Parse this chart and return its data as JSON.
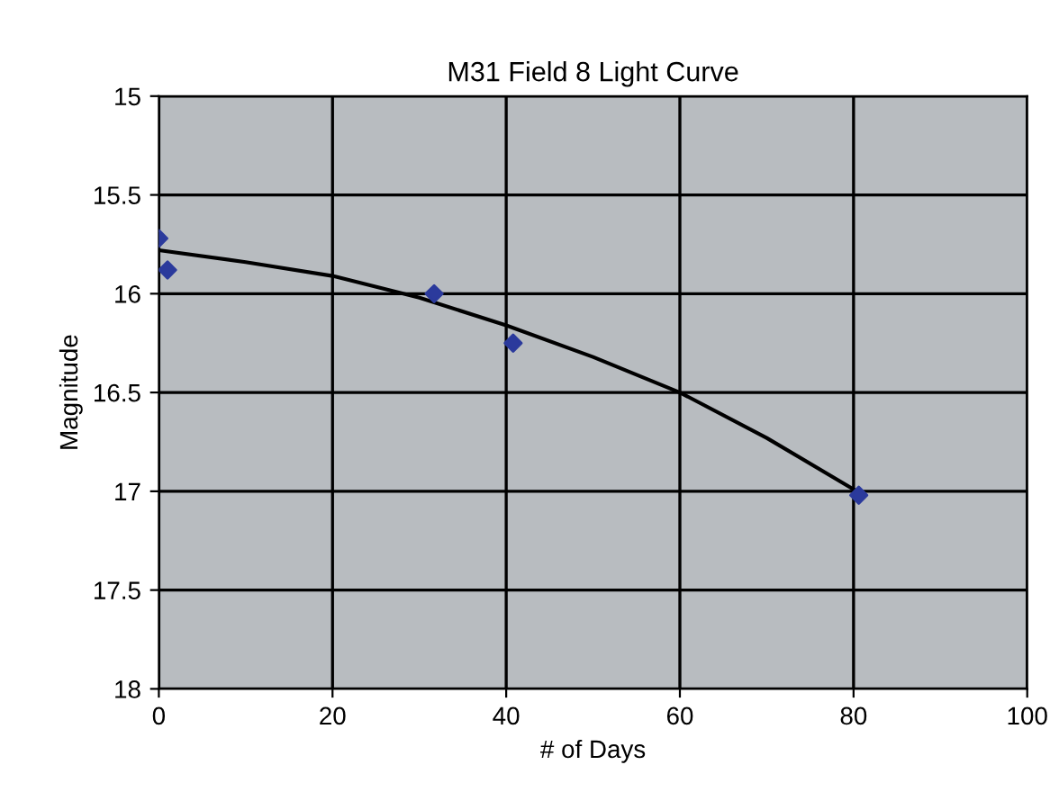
{
  "chart_data": {
    "type": "scatter",
    "title": "M31 Field 8 Light Curve",
    "xlabel": "# of Days",
    "ylabel": "Magnitude",
    "series": [
      {
        "color": "#2b3a9c",
        "marker": "diamond",
        "x": [
          0,
          1,
          31.7,
          40.8,
          80.6
        ],
        "values": [
          15.72,
          15.88,
          16.0,
          16.25,
          17.02
        ]
      },
      {
        "type": "line",
        "color": "#000000",
        "marker": "none",
        "x": [
          0,
          10,
          20,
          30,
          40,
          50,
          60,
          70,
          80
        ],
        "values": [
          15.78,
          15.84,
          15.91,
          16.02,
          16.16,
          16.32,
          16.5,
          16.73,
          16.99
        ]
      }
    ],
    "xlim": [
      0,
      100
    ],
    "xticks": [
      0,
      20,
      40,
      60,
      80,
      100
    ],
    "ylim": [
      18,
      15
    ],
    "yticks": [
      15,
      15.5,
      16,
      16.5,
      17,
      17.5,
      18
    ],
    "grid": true
  }
}
